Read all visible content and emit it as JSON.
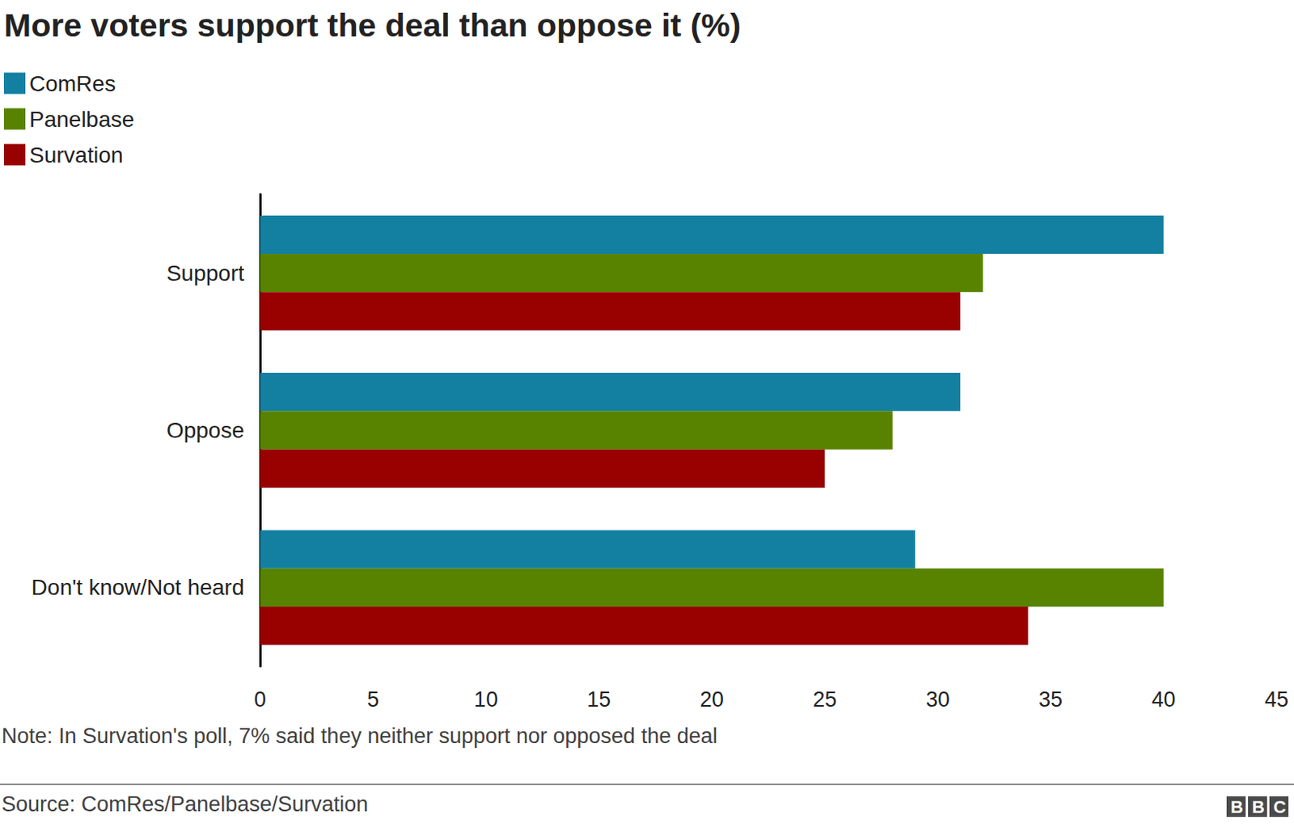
{
  "chart_data": {
    "type": "bar",
    "orientation": "horizontal",
    "title": "More voters support the deal than oppose it (%)",
    "categories": [
      "Support",
      "Oppose",
      "Don't know/Not heard"
    ],
    "series": [
      {
        "name": "ComRes",
        "color": "#1380a1",
        "values": [
          40,
          31,
          29
        ]
      },
      {
        "name": "Panelbase",
        "color": "#588300",
        "values": [
          32,
          28,
          40
        ]
      },
      {
        "name": "Survation",
        "color": "#990000",
        "values": [
          31,
          25,
          34
        ]
      }
    ],
    "xlim": [
      0,
      45
    ],
    "xticks": [
      0,
      5,
      10,
      15,
      20,
      25,
      30,
      35,
      40,
      45
    ],
    "grid": false,
    "legend": "top-left",
    "note": "Note: In Survation's poll, 7% said they neither support nor opposed the deal",
    "source": "Source: ComRes/Panelbase/Survation",
    "logo": "BBC"
  }
}
